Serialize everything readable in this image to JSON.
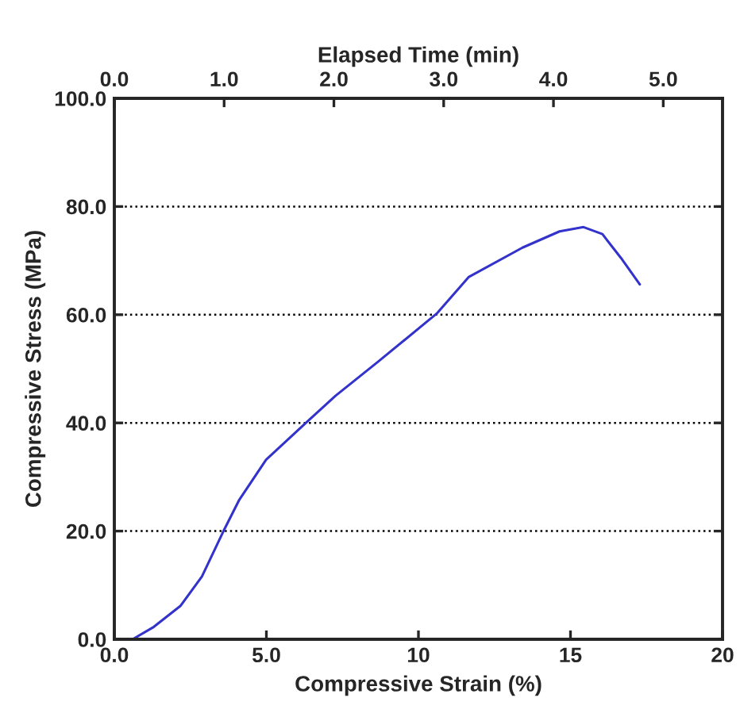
{
  "chart_data": {
    "type": "line",
    "xlabel": "Compressive Strain (%)",
    "ylabel": "Compressive Stress (MPa)",
    "x2label": "Elapsed Time (min)",
    "xlim": [
      0,
      20
    ],
    "xticks": [
      {
        "value": 0,
        "label": "0.0"
      },
      {
        "value": 5,
        "label": "5.0"
      },
      10,
      15,
      20
    ],
    "x2lim": [
      0,
      5.54
    ],
    "x2ticks": [
      {
        "value": 0,
        "label": "0.0"
      },
      {
        "value": 1,
        "label": "1.0"
      },
      {
        "value": 2,
        "label": "2.0"
      },
      {
        "value": 3,
        "label": "3.0"
      },
      {
        "value": 4,
        "label": "4.0"
      },
      {
        "value": 5,
        "label": "5.0"
      }
    ],
    "ylim": [
      0,
      100
    ],
    "yticks": [
      {
        "value": 0,
        "label": "0.0"
      },
      {
        "value": 20,
        "label": "20.0"
      },
      {
        "value": 40,
        "label": "40.0"
      },
      {
        "value": 60,
        "label": "60.0"
      },
      {
        "value": 80,
        "label": "80.0"
      },
      {
        "value": 100,
        "label": "100.0"
      }
    ],
    "grid": "y",
    "marker": "none",
    "line_style": "solid",
    "series": [
      {
        "color": "#3333cc",
        "x": [
          0.6,
          1.3,
          2.18,
          2.88,
          3.58,
          4.11,
          4.99,
          6.3,
          7.27,
          8.67,
          10.6,
          11.66,
          13.42,
          14.64,
          15.43,
          16.05,
          16.66,
          17.28
        ],
        "values": [
          0,
          2.3,
          6.2,
          11.6,
          19.9,
          25.8,
          33.2,
          40,
          45,
          51.3,
          60.2,
          67,
          72.4,
          75.4,
          76.2,
          74.9,
          70.5,
          65.6
        ]
      }
    ]
  }
}
